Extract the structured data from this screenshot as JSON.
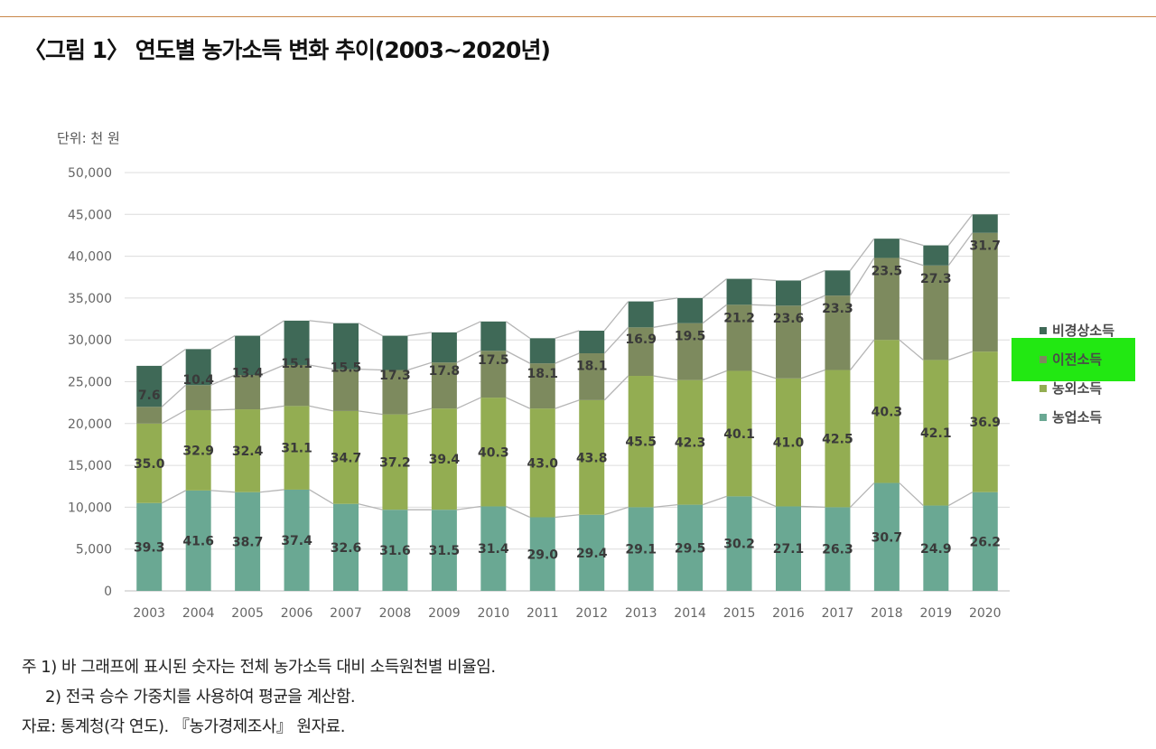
{
  "title": "〈그림 1〉 연도별 농가소득 변화 추이(2003~2020년)",
  "unit_label": "단위: 천 원",
  "notes": [
    "주 1) 바 그래프에 표시된 숫자는 전체 농가소득 대비 소득원천별 비율임.",
    "2) 전국 승수 가중치를 사용하여 평균을 계산함.",
    "자료: 통계청(각 연도). 『농가경제조사』 원자료."
  ],
  "colors": {
    "accent_rule": "#c9874a",
    "highlight": "#22e812"
  },
  "chart_data": {
    "type": "bar",
    "stacked": true,
    "categories": [
      "2003",
      "2004",
      "2005",
      "2006",
      "2007",
      "2008",
      "2009",
      "2010",
      "2011",
      "2012",
      "2013",
      "2014",
      "2015",
      "2016",
      "2017",
      "2018",
      "2019",
      "2020"
    ],
    "ylim": [
      0,
      50000
    ],
    "y_ticks": [
      0,
      5000,
      10000,
      15000,
      20000,
      25000,
      30000,
      35000,
      40000,
      45000,
      50000
    ],
    "y_tick_labels": [
      "0",
      "5,000",
      "10,000",
      "15,000",
      "20,000",
      "25,000",
      "30,000",
      "35,000",
      "40,000",
      "45,000",
      "50,000"
    ],
    "grid": true,
    "connector_lines": true,
    "legend_position": "right",
    "series": [
      {
        "name": "농업소득",
        "color": "#6aa893",
        "values": [
          10500,
          12000,
          11800,
          12100,
          10400,
          9700,
          9700,
          10100,
          8800,
          9100,
          10000,
          10300,
          11300,
          10100,
          10000,
          12900,
          10200,
          11800
        ],
        "labels": [
          "39.3",
          "41.6",
          "38.7",
          "37.4",
          "32.6",
          "31.6",
          "31.5",
          "31.4",
          "29.0",
          "29.4",
          "29.1",
          "29.5",
          "30.2",
          "27.1",
          "26.3",
          "30.7",
          "24.9",
          "26.2"
        ]
      },
      {
        "name": "농외소득",
        "color": "#93ad52",
        "values": [
          9500,
          9600,
          9900,
          10000,
          11100,
          11400,
          12100,
          13000,
          13000,
          13700,
          15700,
          14900,
          15000,
          15300,
          16400,
          17100,
          17400,
          16800
        ],
        "labels": [
          "35.0",
          "32.9",
          "32.4",
          "31.1",
          "34.7",
          "37.2",
          "39.4",
          "40.3",
          "43.0",
          "43.8",
          "45.5",
          "42.3",
          "40.1",
          "41.0",
          "42.5",
          "40.3",
          "42.1",
          "36.9"
        ]
      },
      {
        "name": "이전소득",
        "color": "#7d8a5e",
        "values": [
          2000,
          3000,
          4100,
          4900,
          5000,
          5300,
          5500,
          5600,
          5400,
          5600,
          5800,
          6800,
          7900,
          8700,
          8900,
          9800,
          11300,
          14200
        ],
        "labels": [
          "7.6",
          "10.4",
          "13.4",
          "15.1",
          "15.5",
          "17.3",
          "17.8",
          "17.5",
          "18.1",
          "18.1",
          "16.9",
          "19.5",
          "21.2",
          "23.6",
          "23.3",
          "23.5",
          "27.3",
          "31.7"
        ]
      },
      {
        "name": "비경상소득",
        "color": "#3f6957",
        "values": [
          4900,
          4300,
          4700,
          5300,
          5500,
          4100,
          3600,
          3500,
          3000,
          2700,
          3100,
          3000,
          3100,
          3000,
          3000,
          2300,
          2400,
          2200
        ],
        "labels": []
      }
    ],
    "highlighted_legend_item": "이전소득"
  }
}
